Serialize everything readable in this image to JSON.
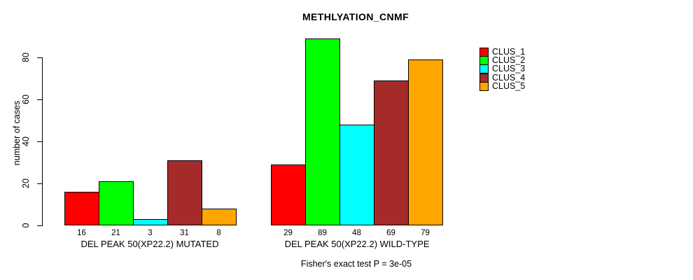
{
  "page": {
    "background": "#ffffff"
  },
  "chart_data": {
    "type": "bar",
    "title": "METHLYATION_CNMF",
    "xlabel": "",
    "ylabel": "number of cases",
    "ylim": [
      0,
      89
    ],
    "yticks": [
      0,
      20,
      40,
      60,
      80
    ],
    "grid": false,
    "legend_position": "right",
    "bar_value_labels_shown": true,
    "groups": [
      {
        "label": "DEL PEAK 50(XP22.2) MUTATED",
        "values": [
          16,
          21,
          3,
          31,
          8
        ]
      },
      {
        "label": "DEL PEAK 50(XP22.2) WILD-TYPE",
        "values": [
          29,
          89,
          48,
          69,
          79
        ]
      }
    ],
    "series": [
      {
        "name": "CLUS_1",
        "color": "#FF0000"
      },
      {
        "name": "CLUS_2",
        "color": "#00FF00"
      },
      {
        "name": "CLUS_3",
        "color": "#00FFFF"
      },
      {
        "name": "CLUS_4",
        "color": "#A52A2A"
      },
      {
        "name": "CLUS_5",
        "color": "#FFA500"
      }
    ],
    "annotation": "Fisher's exact test P = 3e-05"
  }
}
